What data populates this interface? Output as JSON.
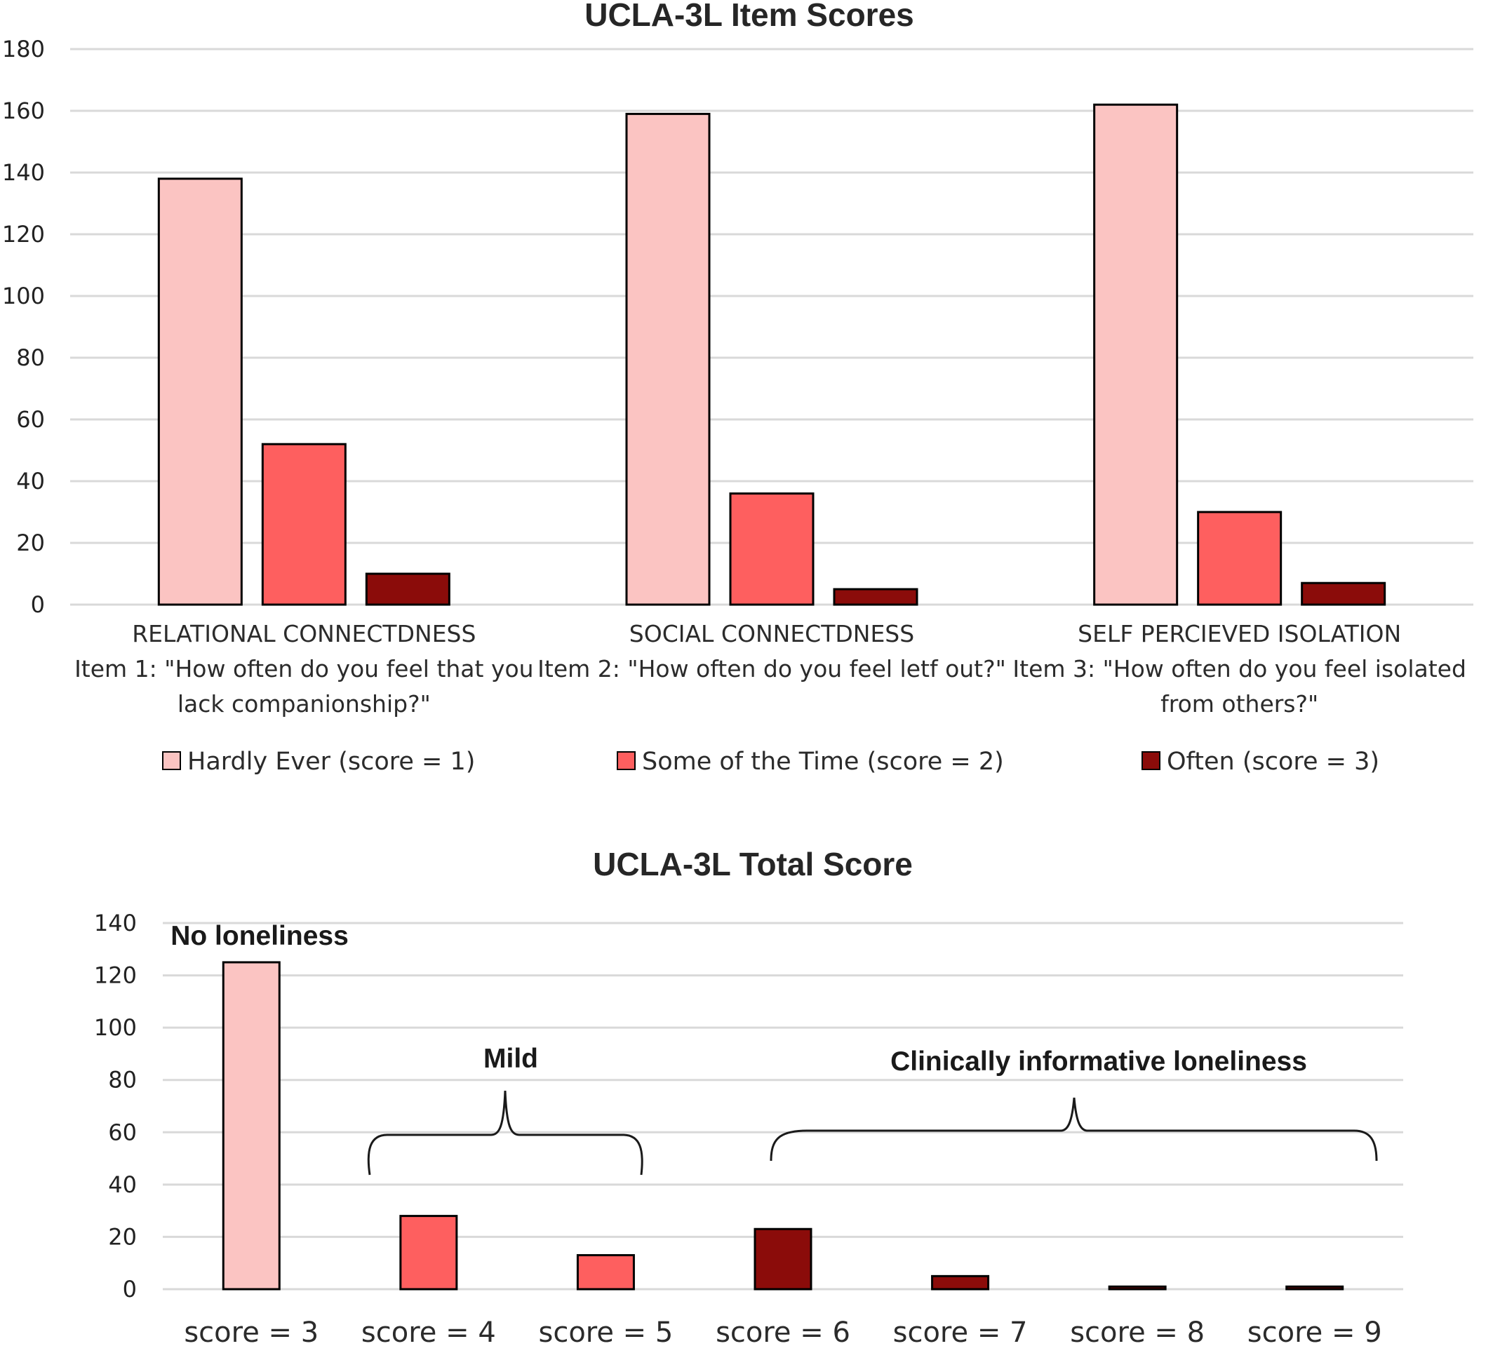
{
  "chart_data": [
    {
      "type": "bar",
      "title": "UCLA-3L  Item Scores",
      "ylim": [
        0,
        180
      ],
      "yticks": [
        "0",
        "20",
        "40",
        "60",
        "80",
        "100",
        "120",
        "140",
        "160",
        "180"
      ],
      "grid": true,
      "legend_position": "bottom",
      "categories": [
        [
          "RELATIONAL CONNECTDNESS",
          "Item 1: \"How often do you feel that you",
          "lack companionship?\""
        ],
        [
          "SOCIAL CONNECTDNESS",
          "Item 2: \"How often do you feel letf out?\""
        ],
        [
          "SELF PERCIEVED ISOLATION",
          "Item 3: \"How often do you feel isolated",
          "from others?\""
        ]
      ],
      "series": [
        {
          "name": "Hardly Ever (score = 1)",
          "color": "#fbc4c2",
          "values": [
            138,
            159,
            162
          ]
        },
        {
          "name": "Some of the Time (score = 2)",
          "color": "#fe5f5f",
          "values": [
            52,
            36,
            30
          ]
        },
        {
          "name": "Often (score = 3)",
          "color": "#8b0c0a",
          "values": [
            10,
            5,
            7
          ]
        }
      ]
    },
    {
      "type": "bar",
      "title": "UCLA-3L Total Score",
      "ylim": [
        0,
        140
      ],
      "yticks": [
        "0",
        "20",
        "40",
        "60",
        "80",
        "100",
        "120",
        "140"
      ],
      "grid": true,
      "categories": [
        "score = 3",
        "score = 4",
        "score = 5",
        "score = 6",
        "score = 7",
        "score = 8",
        "score = 9"
      ],
      "values": [
        125,
        28,
        13,
        23,
        5,
        1,
        1
      ],
      "colors": [
        "#fbc4c2",
        "#fe5f5f",
        "#fe5f5f",
        "#8b0c0a",
        "#8b0c0a",
        "#8b0c0a",
        "#8b0c0a"
      ],
      "annotations": {
        "no_loneliness": "No loneliness",
        "mild": "Mild",
        "clinical": "Clinically informative loneliness"
      }
    }
  ]
}
